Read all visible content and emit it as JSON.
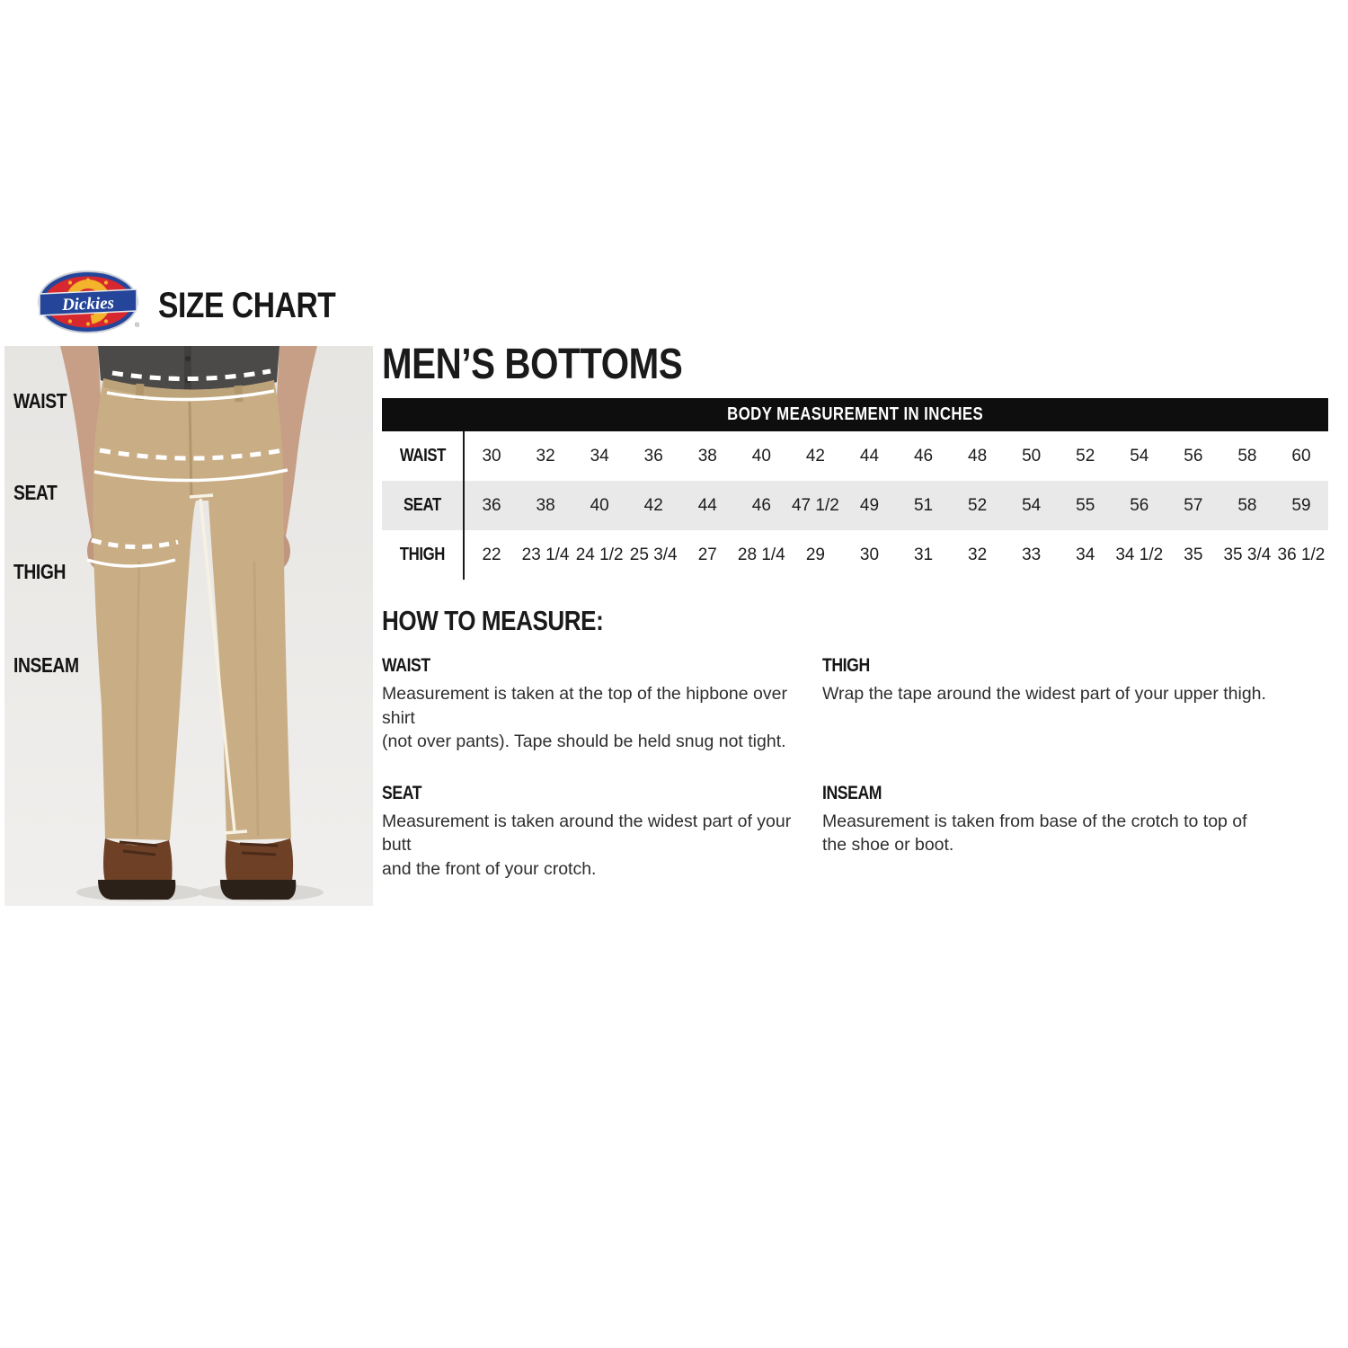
{
  "header": {
    "brand": "Dickies",
    "title": "SIZE CHART"
  },
  "section_title": "MEN’S BOTTOMS",
  "figure": {
    "labels": [
      "WAIST",
      "SEAT",
      "THIGH",
      "INSEAM"
    ]
  },
  "table": {
    "header": "BODY MEASUREMENT IN INCHES",
    "rows": [
      {
        "label": "WAIST",
        "values": [
          "30",
          "32",
          "34",
          "36",
          "38",
          "40",
          "42",
          "44",
          "46",
          "48",
          "50",
          "52",
          "54",
          "56",
          "58",
          "60"
        ]
      },
      {
        "label": "SEAT",
        "values": [
          "36",
          "38",
          "40",
          "42",
          "44",
          "46",
          "47 1/2",
          "49",
          "51",
          "52",
          "54",
          "55",
          "56",
          "57",
          "58",
          "59"
        ]
      },
      {
        "label": "THIGH",
        "values": [
          "22",
          "23 1/4",
          "24 1/2",
          "25 3/4",
          "27",
          "28 1/4",
          "29",
          "30",
          "31",
          "32",
          "33",
          "34",
          "34 1/2",
          "35",
          "35 3/4",
          "36 1/2"
        ]
      }
    ]
  },
  "how_to_measure": {
    "title": "HOW TO MEASURE:",
    "items": [
      {
        "label": "WAIST",
        "text": "Measurement is taken at the top of the hipbone over shirt\n(not over pants). Tape should be held snug not tight."
      },
      {
        "label": "SEAT",
        "text": "Measurement is taken around the widest part of your butt\nand the front of your crotch."
      },
      {
        "label": "THIGH",
        "text": "Wrap the tape around the widest part of your upper thigh."
      },
      {
        "label": "INSEAM",
        "text": "Measurement is taken from base of the crotch to top of\nthe shoe or boot."
      }
    ]
  },
  "colors": {
    "bar_black": "#0e0e0e",
    "row_alt_gray": "#e9e9e9",
    "logo_red": "#d7282f",
    "logo_blue": "#24459a",
    "logo_yellow": "#f3b32b",
    "pants_khaki": "#c9ae85",
    "photo_bg": "#e9e7e4"
  }
}
